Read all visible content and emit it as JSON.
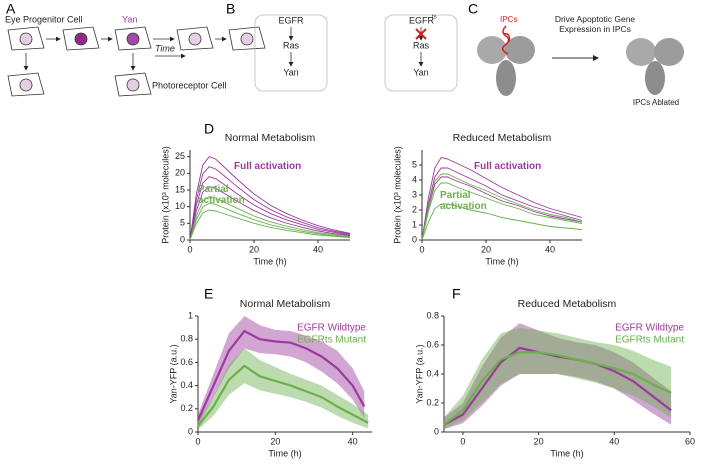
{
  "panel_labels": [
    "A",
    "B",
    "C",
    "D",
    "E",
    "F"
  ],
  "panel_a": {
    "progenitor": "Eye Progenitor Cell",
    "yan": "Yan",
    "time": "Time",
    "photoreceptor": "Photoreceptor Cell"
  },
  "panel_b": {
    "wildtype": [
      "EGFR",
      "Ras",
      "Yan"
    ],
    "mutant_base": "EGFR",
    "mutant_sup": "ts",
    "mutant": [
      "Ras",
      "Yan"
    ]
  },
  "panel_c": {
    "ipcs": "IPCs",
    "drive": "Drive Apoptotic Gene Expression in IPCs",
    "ablated": "IPCs Ablated"
  },
  "chart_data": [
    {
      "type": "line",
      "title": "Normal Metabolism",
      "x_label": "Time (h)",
      "y_label": "Protein (x10³ molecules)",
      "xlim": [
        0,
        50
      ],
      "xticks": [
        0,
        20,
        40
      ],
      "ylim": [
        0,
        27
      ],
      "yticks": [
        0,
        5,
        10,
        15,
        20,
        25
      ],
      "annotations": [
        {
          "text": "Full activation",
          "color": "#9b3a9e"
        },
        {
          "text": "Partial activation",
          "color": "#6ab04c"
        }
      ],
      "series": [
        {
          "color": "#9b3a9e",
          "x": [
            0,
            2,
            4,
            6,
            8,
            10,
            15,
            20,
            25,
            30,
            35,
            40,
            45,
            50
          ],
          "values": [
            0,
            13.8,
            22.5,
            25,
            24.3,
            22.5,
            18,
            13.8,
            10.5,
            8,
            6,
            4.3,
            3,
            2
          ]
        },
        {
          "color": "#9b3a9e",
          "x": [
            0,
            2,
            4,
            6,
            8,
            10,
            15,
            20,
            25,
            30,
            35,
            40,
            45,
            50
          ],
          "values": [
            0,
            12.1,
            19.8,
            22,
            21.3,
            19.8,
            15.8,
            12.1,
            9.2,
            7,
            5.3,
            3.7,
            2.6,
            1.8
          ]
        },
        {
          "color": "#9b3a9e",
          "x": [
            0,
            2,
            4,
            6,
            8,
            10,
            15,
            20,
            25,
            30,
            35,
            40,
            45,
            50
          ],
          "values": [
            0,
            10.5,
            17.1,
            19,
            18.4,
            17.1,
            13.7,
            10.5,
            8,
            6.1,
            4.6,
            3.2,
            2.3,
            1.5
          ]
        },
        {
          "color": "#9b3a9e",
          "x": [
            0,
            2,
            4,
            6,
            8,
            10,
            15,
            20,
            25,
            30,
            35,
            40,
            45,
            50
          ],
          "values": [
            0,
            8.8,
            14.4,
            16,
            15.5,
            14.4,
            11.5,
            8.8,
            6.7,
            5.1,
            3.8,
            2.7,
            1.9,
            1.3
          ]
        },
        {
          "color": "#6ab04c",
          "x": [
            0,
            2,
            4,
            6,
            8,
            10,
            15,
            20,
            25,
            30,
            35,
            40,
            45,
            50
          ],
          "values": [
            0,
            7.2,
            11.7,
            13,
            12.6,
            11.7,
            9.4,
            7.2,
            5.5,
            4.2,
            3.1,
            2.2,
            1.6,
            1
          ]
        },
        {
          "color": "#6ab04c",
          "x": [
            0,
            2,
            4,
            6,
            8,
            10,
            15,
            20,
            25,
            30,
            35,
            40,
            45,
            50
          ],
          "values": [
            0,
            6.1,
            9.9,
            11,
            10.7,
            9.9,
            7.9,
            6.1,
            4.6,
            3.5,
            2.6,
            1.9,
            1.3,
            0.9
          ]
        },
        {
          "color": "#6ab04c",
          "x": [
            0,
            2,
            4,
            6,
            8,
            10,
            15,
            20,
            25,
            30,
            35,
            40,
            45,
            50
          ],
          "values": [
            0,
            5,
            8.1,
            9,
            8.7,
            8.1,
            6.5,
            5,
            3.8,
            2.9,
            2.2,
            1.5,
            1.1,
            0.7
          ]
        }
      ]
    },
    {
      "type": "line",
      "title": "Reduced Metabolism",
      "x_label": "Time (h)",
      "y_label": "Protein (x10³ molecules)",
      "xlim": [
        0,
        50
      ],
      "xticks": [
        0,
        20,
        40
      ],
      "ylim": [
        0,
        6
      ],
      "yticks": [
        0,
        1,
        2,
        3,
        4,
        5
      ],
      "annotations": [
        {
          "text": "Full activation",
          "color": "#9b3a9e"
        },
        {
          "text": "Partial activation",
          "color": "#6ab04c"
        }
      ],
      "series": [
        {
          "color": "#9b3a9e",
          "x": [
            0,
            2,
            4,
            6,
            8,
            10,
            15,
            20,
            25,
            30,
            35,
            40,
            45,
            50
          ],
          "values": [
            0,
            2.8,
            4.8,
            5.5,
            5.4,
            5.2,
            4.7,
            4.1,
            3.5,
            3,
            2.5,
            2.1,
            1.8,
            1.5
          ]
        },
        {
          "color": "#9b3a9e",
          "x": [
            0,
            2,
            4,
            6,
            8,
            10,
            15,
            20,
            25,
            30,
            35,
            40,
            45,
            50
          ],
          "values": [
            0,
            2.4,
            4.2,
            4.8,
            4.8,
            4.6,
            4.1,
            3.6,
            3,
            2.6,
            2.2,
            1.9,
            1.6,
            1.3
          ]
        },
        {
          "color": "#9b3a9e",
          "x": [
            0,
            2,
            4,
            6,
            8,
            10,
            15,
            20,
            25,
            30,
            35,
            40,
            45,
            50
          ],
          "values": [
            0,
            2.1,
            3.7,
            4.2,
            4.2,
            4,
            3.6,
            3.1,
            2.6,
            2.3,
            1.9,
            1.6,
            1.4,
            1.2
          ]
        },
        {
          "color": "#6ab04c",
          "x": [
            0,
            2,
            4,
            6,
            8,
            10,
            15,
            20,
            25,
            30,
            35,
            40,
            45,
            50
          ],
          "values": [
            0,
            2.2,
            3.9,
            4.4,
            4.4,
            4.2,
            3.7,
            3.3,
            2.8,
            2.4,
            2,
            1.7,
            1.5,
            1.2
          ]
        },
        {
          "color": "#6ab04c",
          "x": [
            0,
            2,
            4,
            6,
            8,
            10,
            15,
            20,
            25,
            30,
            35,
            40,
            45,
            50
          ],
          "values": [
            0,
            1.9,
            3.3,
            3.8,
            3.8,
            3.6,
            3.2,
            2.8,
            2.4,
            2.1,
            1.7,
            1.5,
            1.3,
            1.1
          ]
        },
        {
          "color": "#6ab04c",
          "x": [
            0,
            2,
            4,
            6,
            8,
            10,
            15,
            20,
            25,
            30,
            35,
            40,
            45,
            50
          ],
          "values": [
            0,
            1.2,
            2.1,
            2.4,
            2.4,
            2.3,
            2,
            1.8,
            1.5,
            1.3,
            1.1,
            0.9,
            0.8,
            0.7
          ]
        }
      ]
    },
    {
      "type": "line",
      "title": "Normal Metabolism",
      "x_label": "Time (h)",
      "y_label": "Yan-YFP (a.u.)",
      "xlim": [
        0,
        45
      ],
      "xticks": [
        0,
        20,
        40
      ],
      "ylim": [
        0,
        1
      ],
      "yticks": [
        0,
        0.2,
        0.4,
        0.6,
        0.8,
        1
      ],
      "legend": "upper right",
      "series": [
        {
          "name": "EGFR Wildtype",
          "color": "#9b3a9e",
          "x": [
            0,
            4,
            8,
            12,
            16,
            20,
            24,
            28,
            32,
            36,
            40,
            43
          ],
          "values": [
            0.1,
            0.4,
            0.7,
            0.87,
            0.8,
            0.78,
            0.77,
            0.72,
            0.65,
            0.55,
            0.4,
            0.22
          ],
          "lower": [
            0.05,
            0.3,
            0.55,
            0.72,
            0.68,
            0.67,
            0.65,
            0.6,
            0.52,
            0.42,
            0.28,
            0.12
          ],
          "upper": [
            0.15,
            0.5,
            0.85,
            1.0,
            0.92,
            0.88,
            0.87,
            0.83,
            0.78,
            0.7,
            0.55,
            0.35
          ]
        },
        {
          "name": "EGFRts Mutant",
          "color": "#6ab04c",
          "x": [
            0,
            4,
            8,
            12,
            16,
            20,
            24,
            28,
            32,
            36,
            40,
            44
          ],
          "values": [
            0.05,
            0.22,
            0.45,
            0.57,
            0.48,
            0.44,
            0.4,
            0.35,
            0.3,
            0.22,
            0.15,
            0.08
          ],
          "lower": [
            0.02,
            0.14,
            0.32,
            0.42,
            0.36,
            0.33,
            0.3,
            0.26,
            0.21,
            0.14,
            0.08,
            0.03
          ],
          "upper": [
            0.1,
            0.3,
            0.58,
            0.72,
            0.62,
            0.56,
            0.5,
            0.45,
            0.4,
            0.32,
            0.24,
            0.15
          ]
        }
      ]
    },
    {
      "type": "line",
      "title": "Reduced Metabolism",
      "x_label": "Time (h)",
      "y_label": "Yan-YFP (a.u.)",
      "xlim": [
        -5,
        60
      ],
      "xticks": [
        0,
        20,
        40,
        60
      ],
      "ylim": [
        0,
        0.8
      ],
      "yticks": [
        0,
        0.2,
        0.4,
        0.6,
        0.8
      ],
      "legend": "upper right",
      "series": [
        {
          "name": "EGFR Wildtype",
          "color": "#9b3a9e",
          "x": [
            -5,
            0,
            5,
            10,
            15,
            20,
            25,
            30,
            35,
            40,
            45,
            50,
            55
          ],
          "values": [
            0.05,
            0.12,
            0.3,
            0.48,
            0.58,
            0.55,
            0.52,
            0.5,
            0.47,
            0.42,
            0.35,
            0.25,
            0.15
          ],
          "lower": [
            0.02,
            0.06,
            0.18,
            0.32,
            0.4,
            0.4,
            0.4,
            0.38,
            0.35,
            0.3,
            0.22,
            0.13,
            0.05
          ],
          "upper": [
            0.1,
            0.2,
            0.45,
            0.65,
            0.75,
            0.7,
            0.65,
            0.62,
            0.6,
            0.55,
            0.48,
            0.38,
            0.28
          ]
        },
        {
          "name": "EGFRts Mutant",
          "color": "#6ab04c",
          "x": [
            -5,
            0,
            5,
            10,
            15,
            20,
            25,
            30,
            35,
            40,
            45,
            50,
            55
          ],
          "values": [
            0.05,
            0.15,
            0.35,
            0.5,
            0.55,
            0.55,
            0.53,
            0.5,
            0.47,
            0.44,
            0.4,
            0.33,
            0.27
          ],
          "lower": [
            0.02,
            0.08,
            0.2,
            0.33,
            0.4,
            0.4,
            0.4,
            0.37,
            0.34,
            0.3,
            0.25,
            0.18,
            0.1
          ],
          "upper": [
            0.1,
            0.25,
            0.5,
            0.68,
            0.72,
            0.7,
            0.68,
            0.65,
            0.62,
            0.6,
            0.56,
            0.5,
            0.45
          ]
        }
      ]
    }
  ]
}
